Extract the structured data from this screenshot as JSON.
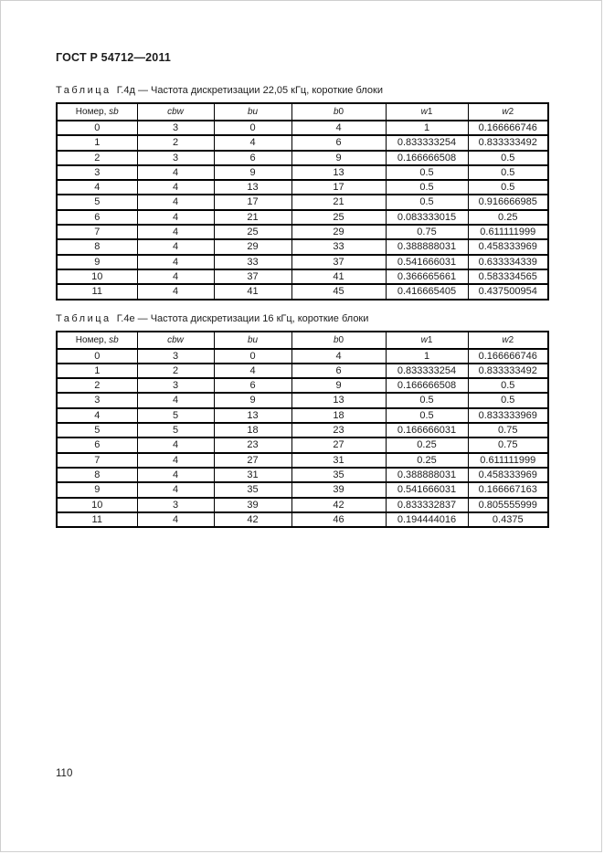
{
  "page": {
    "doc_header": "ГОСТ Р 54712—2011",
    "page_number": "110"
  },
  "tables": [
    {
      "caption_label": "Таблица",
      "caption_rest": " Г.4д — Частота дискретизации 22,05 кГц, короткие блоки",
      "headers": [
        {
          "plain": "Номер, ",
          "italic": "sb",
          "suffix": ""
        },
        {
          "plain": "",
          "italic": "cbw",
          "suffix": ""
        },
        {
          "plain": "",
          "italic": "bu",
          "suffix": ""
        },
        {
          "plain": "",
          "italic": "b",
          "suffix": "0"
        },
        {
          "plain": "",
          "italic": "w",
          "suffix": "1"
        },
        {
          "plain": "",
          "italic": "w",
          "suffix": "2"
        }
      ],
      "rows": [
        [
          "0",
          "3",
          "0",
          "4",
          "1",
          "0.166666746"
        ],
        [
          "1",
          "2",
          "4",
          "6",
          "0.833333254",
          "0.833333492"
        ],
        [
          "2",
          "3",
          "6",
          "9",
          "0.166666508",
          "0.5"
        ],
        [
          "3",
          "4",
          "9",
          "13",
          "0.5",
          "0.5"
        ],
        [
          "4",
          "4",
          "13",
          "17",
          "0.5",
          "0.5"
        ],
        [
          "5",
          "4",
          "17",
          "21",
          "0.5",
          "0.916666985"
        ],
        [
          "6",
          "4",
          "21",
          "25",
          "0.083333015",
          "0.25"
        ],
        [
          "7",
          "4",
          "25",
          "29",
          "0.75",
          "0.611111999"
        ],
        [
          "8",
          "4",
          "29",
          "33",
          "0.388888031",
          "0.458333969"
        ],
        [
          "9",
          "4",
          "33",
          "37",
          "0.541666031",
          "0.633334339"
        ],
        [
          "10",
          "4",
          "37",
          "41",
          "0.366665661",
          "0.583334565"
        ],
        [
          "11",
          "4",
          "41",
          "45",
          "0.416665405",
          "0.437500954"
        ]
      ]
    },
    {
      "caption_label": "Таблица",
      "caption_rest": " Г.4е — Частота дискретизации 16 кГц, короткие блоки",
      "headers": [
        {
          "plain": "Номер, ",
          "italic": "sb",
          "suffix": ""
        },
        {
          "plain": "",
          "italic": "cbw",
          "suffix": ""
        },
        {
          "plain": "",
          "italic": "bu",
          "suffix": ""
        },
        {
          "plain": "",
          "italic": "b",
          "suffix": "0"
        },
        {
          "plain": "",
          "italic": "w",
          "suffix": "1"
        },
        {
          "plain": "",
          "italic": "w",
          "suffix": "2"
        }
      ],
      "rows": [
        [
          "0",
          "3",
          "0",
          "4",
          "1",
          "0.166666746"
        ],
        [
          "1",
          "2",
          "4",
          "6",
          "0.833333254",
          "0.833333492"
        ],
        [
          "2",
          "3",
          "6",
          "9",
          "0.166666508",
          "0.5"
        ],
        [
          "3",
          "4",
          "9",
          "13",
          "0.5",
          "0.5"
        ],
        [
          "4",
          "5",
          "13",
          "18",
          "0.5",
          "0.833333969"
        ],
        [
          "5",
          "5",
          "18",
          "23",
          "0.166666031",
          "0.75"
        ],
        [
          "6",
          "4",
          "23",
          "27",
          "0.25",
          "0.75"
        ],
        [
          "7",
          "4",
          "27",
          "31",
          "0.25",
          "0.611111999"
        ],
        [
          "8",
          "4",
          "31",
          "35",
          "0.388888031",
          "0.458333969"
        ],
        [
          "9",
          "4",
          "35",
          "39",
          "0.541666031",
          "0.166667163"
        ],
        [
          "10",
          "3",
          "39",
          "42",
          "0.833332837",
          "0.805555999"
        ],
        [
          "11",
          "4",
          "42",
          "46",
          "0.194444016",
          "0.4375"
        ]
      ]
    }
  ]
}
